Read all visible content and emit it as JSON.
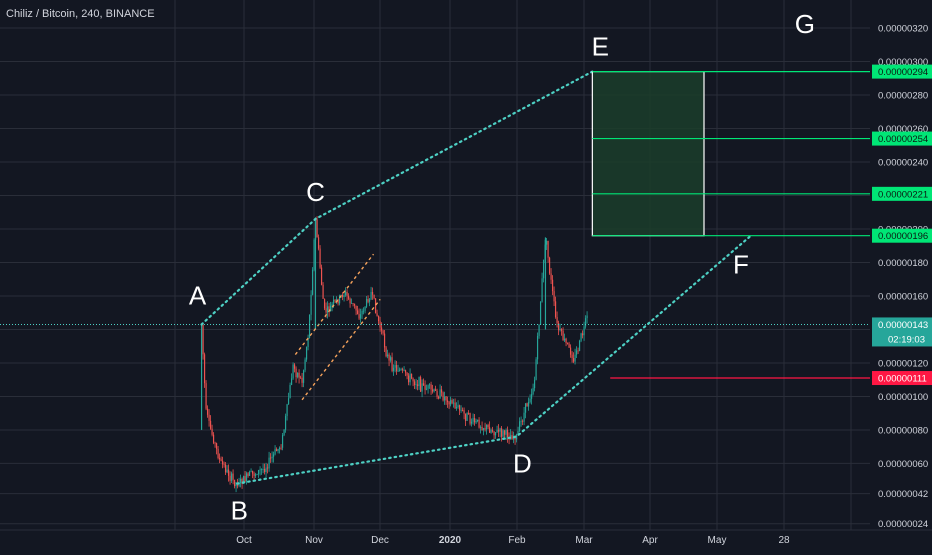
{
  "header": {
    "title": "Chiliz / Bitcoin, 240, BINANCE"
  },
  "colors": {
    "background": "#131722",
    "grid": "#2a2e39",
    "candle_up": "#26a69a",
    "candle_down": "#ef5350",
    "trendline": "#4dd0c4",
    "channel": "#f7a35c",
    "target_box_fill": "#1b3d2a",
    "target_box_border": "#ffffff",
    "target_line": "#00e676",
    "stop_line": "#ff1744",
    "last_price_line": "#4dd0c4",
    "badge_green": "#00e676",
    "badge_red": "#ff1744",
    "badge_teal": "#26a69a"
  },
  "chart_data": {
    "type": "candlestick",
    "title": "Chiliz / Bitcoin, 240, BINANCE",
    "y_axis": {
      "ylim": [
        2e-07,
        3.3e-07
      ],
      "tick_labels": [
        "0.00000320",
        "0.00000300",
        "0.00000280",
        "0.00000260",
        "0.00000240",
        "0.00000220",
        "0.00000200",
        "0.00000180",
        "0.00000160",
        "0.00000140",
        "0.00000120",
        "0.00000100",
        "0.00000080",
        "0.00000060",
        "0.00000042",
        "0.00000024"
      ],
      "tick_values": [
        3.2e-06,
        3e-06,
        2.8e-06,
        2.6e-06,
        2.4e-06,
        2.2e-06,
        2e-06,
        1.8e-06,
        1.6e-06,
        1.4e-06,
        1.2e-06,
        1e-06,
        8e-07,
        6e-07,
        4.2e-07,
        2.4e-07
      ]
    },
    "x_axis": {
      "tick_labels": [
        "Oct",
        "Nov",
        "Dec",
        "2020",
        "Feb",
        "Mar",
        "Apr",
        "May",
        "28"
      ]
    },
    "price_path": [
      {
        "t": "Sep 12",
        "price": 1.43e-06
      },
      {
        "t": "Sep 14",
        "price": 9e-07
      },
      {
        "t": "Sep 20",
        "price": 6.2e-07
      },
      {
        "t": "Sep 27",
        "price": 4.8e-07
      },
      {
        "t": "Oct 10",
        "price": 5.7e-07
      },
      {
        "t": "Oct 18",
        "price": 7.2e-07
      },
      {
        "t": "Oct 23",
        "price": 1.18e-06
      },
      {
        "t": "Oct 27",
        "price": 1.09e-06
      },
      {
        "t": "Oct 30",
        "price": 1.4e-06
      },
      {
        "t": "Nov 2",
        "price": 2.06e-06
      },
      {
        "t": "Nov 6",
        "price": 1.5e-06
      },
      {
        "t": "Nov 15",
        "price": 1.62e-06
      },
      {
        "t": "Nov 22",
        "price": 1.48e-06
      },
      {
        "t": "Nov 27",
        "price": 1.62e-06
      },
      {
        "t": "Dec 5",
        "price": 1.2e-06
      },
      {
        "t": "Dec 20",
        "price": 1.06e-06
      },
      {
        "t": "Jan 1",
        "price": 9.8e-07
      },
      {
        "t": "Jan 10",
        "price": 8.6e-07
      },
      {
        "t": "Jan 20",
        "price": 8e-07
      },
      {
        "t": "Jan 31",
        "price": 7.6e-07
      },
      {
        "t": "Feb 8",
        "price": 1.08e-06
      },
      {
        "t": "Feb 13",
        "price": 1.95e-06
      },
      {
        "t": "Feb 18",
        "price": 1.42e-06
      },
      {
        "t": "Feb 26",
        "price": 1.22e-06
      },
      {
        "t": "Mar 3",
        "price": 1.48e-06
      }
    ],
    "wave_points": [
      {
        "label": "A",
        "t": "Sep 12",
        "price": 1.43e-06
      },
      {
        "label": "B",
        "t": "Sep 28",
        "price": 4.8e-07
      },
      {
        "label": "C",
        "t": "Nov 2",
        "price": 2.06e-06
      },
      {
        "label": "D",
        "t": "Jan 31",
        "price": 7.6e-07
      },
      {
        "label": "E",
        "t": "Mar 5",
        "price": 2.94e-06
      },
      {
        "label": "F",
        "t": "May 15",
        "price": 1.96e-06
      },
      {
        "label": "G",
        "t": "May 28",
        "price": 3.2e-06
      }
    ],
    "target_levels": [
      "0.00000294",
      "0.00000254",
      "0.00000221",
      "0.00000196"
    ],
    "stop_level": "0.00000111",
    "last_price": "0.00000143",
    "countdown": "02:19:03",
    "grid": true
  }
}
